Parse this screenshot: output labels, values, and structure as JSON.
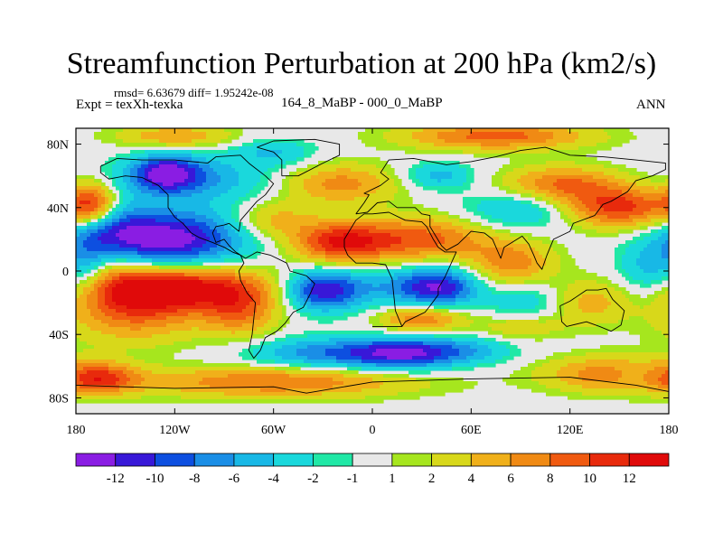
{
  "page": {
    "title": "Streamfunction Perturbation at 200 hPa (km2/s)",
    "stats_line": "rmsd= 6.63679 diff= 1.95242e-08",
    "left_label": "Expt = texXh-texka",
    "center_label": "164_8_MaBP - 000_0_MaBP",
    "right_label": "ANN"
  },
  "chart_data": {
    "type": "heatmap",
    "title": "Streamfunction Perturbation at 200 hPa (km2/s)",
    "subtitle": "164_8_MaBP - 000_0_MaBP",
    "variable": "Streamfunction perturbation",
    "units": "km2/s",
    "xlabel": "",
    "ylabel": "",
    "xlim": [
      -180,
      180
    ],
    "ylim": [
      -90,
      90
    ],
    "x_ticks": [
      {
        "value": -180,
        "label": "180"
      },
      {
        "value": -120,
        "label": "120W"
      },
      {
        "value": -60,
        "label": "60W"
      },
      {
        "value": 0,
        "label": "0"
      },
      {
        "value": 60,
        "label": "60E"
      },
      {
        "value": 120,
        "label": "120E"
      },
      {
        "value": 180,
        "label": "180"
      }
    ],
    "y_ticks": [
      {
        "value": 80,
        "label": "80N"
      },
      {
        "value": 40,
        "label": "40N"
      },
      {
        "value": 0,
        "label": "0"
      },
      {
        "value": -40,
        "label": "40S"
      },
      {
        "value": -80,
        "label": "80S"
      }
    ],
    "colorbar": {
      "levels": [
        "-12",
        "-10",
        "-8",
        "-6",
        "-4",
        "-2",
        "-1",
        "1",
        "2",
        "4",
        "6",
        "8",
        "10",
        "12"
      ],
      "colors": [
        "#8a1de3",
        "#3818d8",
        "#0d4fe0",
        "#1a8ee6",
        "#18b8e6",
        "#1ad8dc",
        "#20e8a6",
        "#e8e8e8",
        "#a6e61e",
        "#d8d81a",
        "#f0b01a",
        "#f08a14",
        "#f05a10",
        "#e82a0c",
        "#e00a0a"
      ]
    },
    "field_features": [
      {
        "lon": -120,
        "lat": 20,
        "value": -13,
        "sx": 30,
        "sy": 13
      },
      {
        "lon": -158,
        "lat": 25,
        "value": -7,
        "sx": 18,
        "sy": 12
      },
      {
        "lon": -125,
        "lat": 62,
        "value": -10,
        "sx": 14,
        "sy": 8
      },
      {
        "lon": -110,
        "lat": 58,
        "value": -6,
        "sx": 35,
        "sy": 10
      },
      {
        "lon": -30,
        "lat": -12,
        "value": -12,
        "sx": 16,
        "sy": 9
      },
      {
        "lon": 42,
        "lat": -10,
        "value": -10,
        "sx": 16,
        "sy": 9
      },
      {
        "lon": 15,
        "lat": -10,
        "value": -5,
        "sx": 22,
        "sy": 9
      },
      {
        "lon": 20,
        "lat": -52,
        "value": -11,
        "sx": 24,
        "sy": 7
      },
      {
        "lon": -30,
        "lat": -52,
        "value": -7,
        "sx": 32,
        "sy": 7
      },
      {
        "lon": 60,
        "lat": -50,
        "value": -4,
        "sx": 20,
        "sy": 6
      },
      {
        "lon": 90,
        "lat": 38,
        "value": -5,
        "sx": 25,
        "sy": 9
      },
      {
        "lon": 40,
        "lat": 60,
        "value": -5,
        "sx": 15,
        "sy": 6
      },
      {
        "lon": 170,
        "lat": 0,
        "value": -6,
        "sx": 14,
        "sy": 14
      },
      {
        "lon": -170,
        "lat": 5,
        "value": -6,
        "sx": 10,
        "sy": 14
      },
      {
        "lon": 95,
        "lat": -20,
        "value": -4,
        "sx": 18,
        "sy": 9
      },
      {
        "lon": -60,
        "lat": 75,
        "value": -4,
        "sx": 18,
        "sy": 6
      },
      {
        "lon": 160,
        "lat": -65,
        "value": -4,
        "sx": 16,
        "sy": 6
      },
      {
        "lon": -120,
        "lat": -10,
        "value": 13,
        "sx": 38,
        "sy": 10
      },
      {
        "lon": -145,
        "lat": -25,
        "value": 8,
        "sx": 30,
        "sy": 14
      },
      {
        "lon": -80,
        "lat": -25,
        "value": 7,
        "sx": 16,
        "sy": 12
      },
      {
        "lon": -20,
        "lat": 18,
        "value": 11,
        "sx": 20,
        "sy": 9
      },
      {
        "lon": 30,
        "lat": 20,
        "value": 9,
        "sx": 30,
        "sy": 10
      },
      {
        "lon": 85,
        "lat": 5,
        "value": 7,
        "sx": 18,
        "sy": 10
      },
      {
        "lon": 150,
        "lat": 40,
        "value": 11,
        "sx": 25,
        "sy": 9
      },
      {
        "lon": 115,
        "lat": 55,
        "value": 8,
        "sx": 25,
        "sy": 8
      },
      {
        "lon": -170,
        "lat": 42,
        "value": 10,
        "sx": 10,
        "sy": 10
      },
      {
        "lon": -165,
        "lat": 5,
        "value": 5,
        "sx": 14,
        "sy": 12
      },
      {
        "lon": -60,
        "lat": 32,
        "value": 5,
        "sx": 18,
        "sy": 8
      },
      {
        "lon": -20,
        "lat": 55,
        "value": 7,
        "sx": 25,
        "sy": 9
      },
      {
        "lon": 75,
        "lat": 85,
        "value": 9,
        "sx": 40,
        "sy": 6
      },
      {
        "lon": -120,
        "lat": 85,
        "value": 6,
        "sx": 25,
        "sy": 5
      },
      {
        "lon": 30,
        "lat": -30,
        "value": 8,
        "sx": 18,
        "sy": 6
      },
      {
        "lon": -60,
        "lat": -70,
        "value": 8,
        "sx": 60,
        "sy": 7
      },
      {
        "lon": 150,
        "lat": -65,
        "value": 9,
        "sx": 30,
        "sy": 8
      },
      {
        "lon": -165,
        "lat": -68,
        "value": 8,
        "sx": 16,
        "sy": 7
      },
      {
        "lon": 130,
        "lat": -20,
        "value": 5,
        "sx": 18,
        "sy": 10
      },
      {
        "lon": 90,
        "lat": -35,
        "value": 4,
        "sx": 18,
        "sy": 6
      }
    ]
  },
  "coastlines": [
    "M0,-35 L18,-35 L20,-32 L28,-28 L32,-26 L35,-22 L40,-15 L40,-11 L44,-4 L51,12 L44,12 L40,15 L37,20 L33,28 L30,31 L20,32 L10,37 L0,36 L-5,36 L-10,32 L-17,20 L-17,15 L-15,10 L-10,5 L0,5 L8,4 L12,-5 L14,-25 L18,-35",
    "M-80,10 L-77,8 L-70,12 L-62,10 L-52,5 L-50,0 L-40,-3 L-35,-8 L-38,-15 L-42,-23 L-48,-26 L-53,-33 L-58,-38 L-65,-42 L-68,-50 L-72,-55 L-75,-50 L-73,-40 L-72,-30 L-71,-20 L-76,-14 L-80,-6 L-81,0 L-78,5 L-80,10",
    "M-80,10 L-85,12 L-90,15 L-97,18 L-105,21 L-110,24 L-115,30 L-120,34 L-124,40 L-124,48 L-130,54 L-140,59 L-150,60 L-160,58 L-165,62 L-165,66 L-155,71 L-140,70 L-120,70 L-100,68 L-95,72 L-80,73 L-75,68 L-65,60 L-60,55 L-65,48 L-70,44 L-75,38 L-80,32 L-81,25 L-87,30 L-90,29 L-95,28 L-97,24 L-95,18 L-90,20 L-87,16 L-83,12 L-80,10",
    "M-55,60 L-45,60 L-30,68 L-20,73 L-20,80 L-35,83 L-60,82 L-70,78 L-60,75 L-55,70 L-55,60",
    "M-10,36 L-5,43 L-2,48 L-5,49 L5,54 L10,58 L5,62 L10,70 L25,71 L40,68 L45,67 L60,69 L75,72 L90,76 L105,78 L120,73 L140,72 L160,70 L178,68 L178,64 L170,60 L160,57 L155,50 L145,44 L140,42 L135,35 L122,30 L120,25 L110,20 L106,10 L103,1 L100,5 L98,10 L95,17 L91,22 L80,15 L78,8 L73,20 L68,24 L60,25 L57,22 L52,17 L45,13 L42,16 L35,28 L35,35 L30,36 L26,40 L20,40 L15,40 L10,44 L3,43 L-3,37 L-10,36",
    "M114,-22 L120,-19 L130,-12 L137,-12 L142,-11 L146,-18 L153,-25 L151,-34 L145,-38 L138,-35 L130,-32 L118,-35 L115,-32 L114,-22",
    "M-180,-72 L-120,-74 L-60,-73 L-40,-77 L0,-70 L60,-68 L120,-67 L160,-72 L180,-76"
  ]
}
